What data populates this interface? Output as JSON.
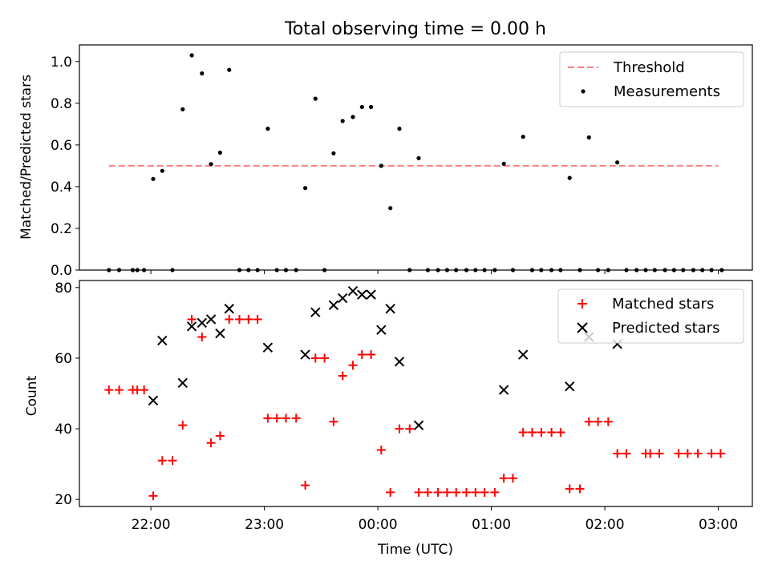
{
  "figure": {
    "title": "Total observing time = 0.00 h",
    "xlabel": "Time (UTC)",
    "x_ticks": [
      {
        "t": 22.0,
        "label": "22:00"
      },
      {
        "t": 23.0,
        "label": "23:00"
      },
      {
        "t": 24.0,
        "label": "00:00"
      },
      {
        "t": 25.0,
        "label": "01:00"
      },
      {
        "t": 26.0,
        "label": "02:00"
      },
      {
        "t": 27.0,
        "label": "03:00"
      }
    ],
    "colors": {
      "threshold": "#ff7f7f",
      "measurement": "#000000",
      "matched": "#ff0000",
      "predicted": "#000000"
    }
  },
  "chart_data": [
    {
      "type": "scatter",
      "ylabel": "Matched/Predicted stars",
      "xlim": [
        21.37,
        27.3
      ],
      "ylim": [
        0.0,
        1.08
      ],
      "y_ticks": [
        {
          "v": 0.0,
          "label": "0.0"
        },
        {
          "v": 0.2,
          "label": "0.2"
        },
        {
          "v": 0.4,
          "label": "0.4"
        },
        {
          "v": 0.6,
          "label": "0.6"
        },
        {
          "v": 0.8,
          "label": "0.8"
        },
        {
          "v": 1.0,
          "label": "1.0"
        }
      ],
      "legend_position": "top-right",
      "threshold": {
        "name": "Threshold",
        "value": 0.5,
        "x_range": [
          21.63,
          27.0
        ]
      },
      "measurements": {
        "name": "Measurements",
        "points": [
          [
            21.63,
            0.0
          ],
          [
            21.72,
            0.0
          ],
          [
            21.84,
            0.0
          ],
          [
            21.88,
            0.0
          ],
          [
            21.94,
            0.0
          ],
          [
            22.02,
            0.437
          ],
          [
            22.1,
            0.476
          ],
          [
            22.19,
            0.0
          ],
          [
            22.28,
            0.771
          ],
          [
            22.36,
            1.03
          ],
          [
            22.45,
            0.943
          ],
          [
            22.53,
            0.508
          ],
          [
            22.61,
            0.563
          ],
          [
            22.69,
            0.96
          ],
          [
            22.78,
            0.0
          ],
          [
            22.86,
            0.0
          ],
          [
            22.94,
            0.0
          ],
          [
            23.03,
            0.678
          ],
          [
            23.11,
            0.0
          ],
          [
            23.19,
            0.0
          ],
          [
            23.28,
            0.0
          ],
          [
            23.36,
            0.393
          ],
          [
            23.45,
            0.822
          ],
          [
            23.53,
            0.0
          ],
          [
            23.61,
            0.56
          ],
          [
            23.69,
            0.715
          ],
          [
            23.78,
            0.734
          ],
          [
            23.86,
            0.782
          ],
          [
            23.94,
            0.782
          ],
          [
            24.03,
            0.5
          ],
          [
            24.11,
            0.297
          ],
          [
            24.19,
            0.678
          ],
          [
            24.28,
            0.0
          ],
          [
            24.36,
            0.537
          ],
          [
            24.44,
            0.0
          ],
          [
            24.53,
            0.0
          ],
          [
            24.61,
            0.0
          ],
          [
            24.69,
            0.0
          ],
          [
            24.78,
            0.0
          ],
          [
            24.86,
            0.0
          ],
          [
            24.94,
            0.0
          ],
          [
            25.03,
            0.0
          ],
          [
            25.11,
            0.51
          ],
          [
            25.19,
            0.0
          ],
          [
            25.28,
            0.639
          ],
          [
            25.36,
            0.0
          ],
          [
            25.44,
            0.0
          ],
          [
            25.53,
            0.0
          ],
          [
            25.61,
            0.0
          ],
          [
            25.69,
            0.442
          ],
          [
            25.78,
            0.0
          ],
          [
            25.86,
            0.636
          ],
          [
            25.94,
            0.0
          ],
          [
            26.03,
            0.0
          ],
          [
            26.11,
            0.516
          ],
          [
            26.19,
            0.0
          ],
          [
            26.28,
            0.0
          ],
          [
            26.36,
            0.0
          ],
          [
            26.44,
            0.0
          ],
          [
            26.53,
            0.0
          ],
          [
            26.61,
            0.0
          ],
          [
            26.69,
            0.0
          ],
          [
            26.78,
            0.0
          ],
          [
            26.86,
            0.0
          ],
          [
            26.94,
            0.0
          ],
          [
            27.03,
            0.0
          ]
        ]
      }
    },
    {
      "type": "scatter",
      "ylabel": "Count",
      "xlim": [
        21.37,
        27.3
      ],
      "ylim": [
        18.0,
        82.0
      ],
      "y_ticks": [
        {
          "v": 20,
          "label": "20"
        },
        {
          "v": 40,
          "label": "40"
        },
        {
          "v": 60,
          "label": "60"
        },
        {
          "v": 80,
          "label": "80"
        }
      ],
      "legend_position": "top-right",
      "matched": {
        "name": "Matched stars",
        "points": [
          [
            21.63,
            51
          ],
          [
            21.72,
            51
          ],
          [
            21.84,
            51
          ],
          [
            21.88,
            51
          ],
          [
            21.94,
            51
          ],
          [
            22.02,
            21
          ],
          [
            22.1,
            31
          ],
          [
            22.19,
            31
          ],
          [
            22.28,
            41
          ],
          [
            22.36,
            71
          ],
          [
            22.45,
            66
          ],
          [
            22.53,
            36
          ],
          [
            22.61,
            38
          ],
          [
            22.69,
            71
          ],
          [
            22.78,
            71
          ],
          [
            22.86,
            71
          ],
          [
            22.94,
            71
          ],
          [
            23.03,
            43
          ],
          [
            23.11,
            43
          ],
          [
            23.19,
            43
          ],
          [
            23.28,
            43
          ],
          [
            23.36,
            24
          ],
          [
            23.45,
            60
          ],
          [
            23.53,
            60
          ],
          [
            23.61,
            42
          ],
          [
            23.69,
            55
          ],
          [
            23.78,
            58
          ],
          [
            23.86,
            61
          ],
          [
            23.94,
            61
          ],
          [
            24.03,
            34
          ],
          [
            24.11,
            22
          ],
          [
            24.19,
            40
          ],
          [
            24.28,
            40
          ],
          [
            24.36,
            22
          ],
          [
            24.44,
            22
          ],
          [
            24.53,
            22
          ],
          [
            24.61,
            22
          ],
          [
            24.69,
            22
          ],
          [
            24.78,
            22
          ],
          [
            24.86,
            22
          ],
          [
            24.94,
            22
          ],
          [
            25.03,
            22
          ],
          [
            25.11,
            26
          ],
          [
            25.19,
            26
          ],
          [
            25.28,
            39
          ],
          [
            25.36,
            39
          ],
          [
            25.44,
            39
          ],
          [
            25.53,
            39
          ],
          [
            25.61,
            39
          ],
          [
            25.69,
            23
          ],
          [
            25.78,
            23
          ],
          [
            25.86,
            42
          ],
          [
            25.94,
            42
          ],
          [
            26.03,
            42
          ],
          [
            26.11,
            33
          ],
          [
            26.19,
            33
          ],
          [
            26.36,
            33
          ],
          [
            26.4,
            33
          ],
          [
            26.48,
            33
          ],
          [
            26.65,
            33
          ],
          [
            26.73,
            33
          ],
          [
            26.82,
            33
          ],
          [
            26.94,
            33
          ],
          [
            27.02,
            33
          ]
        ]
      },
      "predicted": {
        "name": "Predicted stars",
        "points": [
          [
            22.02,
            48
          ],
          [
            22.1,
            65
          ],
          [
            22.28,
            53
          ],
          [
            22.36,
            69
          ],
          [
            22.45,
            70
          ],
          [
            22.53,
            71
          ],
          [
            22.61,
            67
          ],
          [
            22.69,
            74
          ],
          [
            23.03,
            63
          ],
          [
            23.36,
            61
          ],
          [
            23.45,
            73
          ],
          [
            23.61,
            75
          ],
          [
            23.69,
            77
          ],
          [
            23.78,
            79
          ],
          [
            23.86,
            78
          ],
          [
            23.94,
            78
          ],
          [
            24.03,
            68
          ],
          [
            24.11,
            74
          ],
          [
            24.19,
            59
          ],
          [
            24.36,
            41
          ],
          [
            25.11,
            51
          ],
          [
            25.28,
            61
          ],
          [
            25.69,
            52
          ],
          [
            25.86,
            66
          ],
          [
            26.11,
            64
          ]
        ]
      }
    }
  ]
}
